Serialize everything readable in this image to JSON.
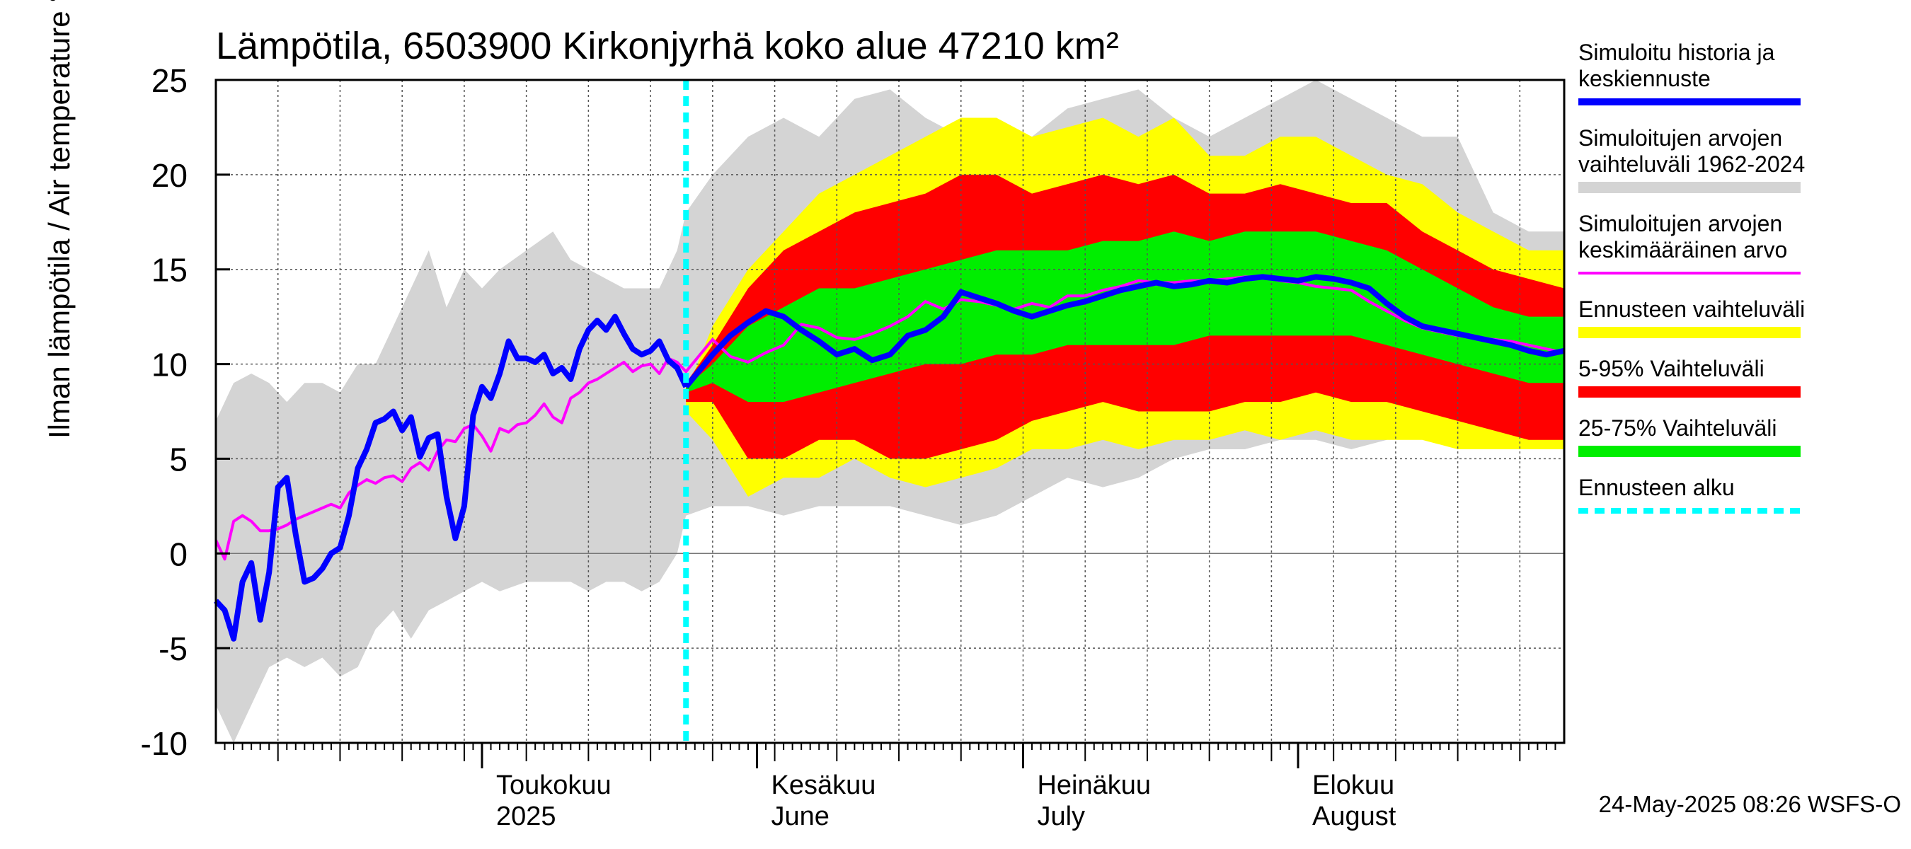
{
  "chart_data": {
    "type": "area",
    "title": "Lämpötila, 6503900 Kirkonjyrhä koko alue 47210 km²",
    "ylabel": "Ilman lämpötila / Air temperature   °C",
    "ylim": [
      -10,
      25
    ],
    "yticks": [
      -10,
      -5,
      0,
      5,
      10,
      15,
      20,
      25
    ],
    "xlim": [
      "2025-04-01",
      "2025-08-31"
    ],
    "grid": true,
    "legend_position": "right",
    "x_labels": [
      {
        "date": "2025-05-01",
        "line1": "Toukokuu",
        "line2": "2025"
      },
      {
        "date": "2025-06-01",
        "line1": "Kesäkuu",
        "line2": "June"
      },
      {
        "date": "2025-07-01",
        "line1": "Heinäkuu",
        "line2": "July"
      },
      {
        "date": "2025-08-01",
        "line1": "Elokuu",
        "line2": "August"
      }
    ],
    "forecast_start": "2025-05-24",
    "footer": "24-May-2025 08:26 WSFS-O",
    "colors": {
      "history": "#0000ff",
      "mean": "#ff00ff",
      "range_hist": "#d4d4d4",
      "range_forecast": "#ffff00",
      "p5_95": "#ff0000",
      "p25_75": "#00ee00",
      "forecast_start": "#00ffff"
    },
    "legend": [
      {
        "key": "history",
        "lines": [
          "Simuloitu historia ja",
          "keskiennuste"
        ],
        "style": "line"
      },
      {
        "key": "range_hist",
        "lines": [
          "Simuloitujen arvojen",
          "vaihteluväli 1962-2024"
        ],
        "style": "band"
      },
      {
        "key": "mean",
        "lines": [
          "Simuloitujen arvojen",
          "keskimääräinen arvo"
        ],
        "style": "thin"
      },
      {
        "key": "range_forecast",
        "lines": [
          "Ennusteen vaihteluväli"
        ],
        "style": "band"
      },
      {
        "key": "p5_95",
        "lines": [
          "5-95% Vaihteluväli"
        ],
        "style": "band"
      },
      {
        "key": "p25_75",
        "lines": [
          "25-75% Vaihteluväli"
        ],
        "style": "band"
      },
      {
        "key": "forecast_start",
        "lines": [
          "Ennusteen alku"
        ],
        "style": "dashed"
      }
    ],
    "series": {
      "hist_range": {
        "day": [
          0,
          2,
          4,
          6,
          8,
          10,
          12,
          14,
          16,
          18,
          20,
          22,
          24,
          26,
          28,
          30,
          32,
          35,
          38,
          40,
          42,
          44,
          46,
          48,
          50,
          52,
          53,
          56,
          60,
          64,
          68,
          72,
          76,
          80,
          84,
          88,
          92,
          96,
          100,
          104,
          108,
          112,
          116,
          120,
          124,
          128,
          132,
          136,
          140,
          144,
          148,
          152
        ],
        "low": [
          -8,
          -10,
          -8,
          -6,
          -5.5,
          -6,
          -5.5,
          -6.5,
          -6,
          -4,
          -3,
          -4.5,
          -3,
          -2.5,
          -2,
          -1.5,
          -2,
          -1.5,
          -1.5,
          -1.5,
          -2,
          -1.5,
          -1.5,
          -2,
          -1.5,
          0,
          2,
          2.5,
          2.5,
          2,
          2.5,
          2.5,
          2.5,
          2,
          1.5,
          2,
          3,
          4,
          3.5,
          4,
          5,
          5.5,
          5.5,
          6,
          6,
          5.5,
          6,
          6.5,
          6,
          5.5,
          5.5,
          5.5
        ],
        "high": [
          7,
          9,
          9.5,
          9,
          8,
          9,
          9,
          8.5,
          10,
          10,
          12,
          14,
          16,
          13,
          15,
          14,
          15,
          16,
          17,
          15.5,
          15,
          14.5,
          14,
          14,
          14,
          16,
          18,
          20,
          22,
          23,
          22,
          24,
          24.5,
          23,
          22,
          21,
          22,
          23.5,
          24,
          24.5,
          23,
          22,
          23,
          24,
          25,
          24,
          23,
          22,
          22,
          18,
          17,
          17
        ]
      },
      "forecast_range": {
        "day": [
          53,
          56,
          60,
          64,
          68,
          72,
          76,
          80,
          84,
          88,
          92,
          96,
          100,
          104,
          108,
          112,
          116,
          120,
          124,
          128,
          132,
          136,
          140,
          144,
          148,
          152
        ],
        "low": [
          7.5,
          6,
          3,
          4,
          4,
          5,
          4,
          3.5,
          4,
          4.5,
          5.5,
          5.5,
          6,
          5.5,
          6,
          6,
          6.5,
          6,
          6.5,
          6,
          6,
          6,
          5.5,
          5.5,
          5.5,
          5.5
        ],
        "high": [
          8.5,
          12,
          15,
          17,
          19,
          20,
          21,
          22,
          23,
          23,
          22,
          22.5,
          23,
          22,
          23,
          21,
          21,
          22,
          22,
          21,
          20,
          19.5,
          18,
          17,
          16,
          16
        ]
      },
      "p5_95": {
        "day": [
          53,
          56,
          60,
          64,
          68,
          72,
          76,
          80,
          84,
          88,
          92,
          96,
          100,
          104,
          108,
          112,
          116,
          120,
          124,
          128,
          132,
          136,
          140,
          144,
          148,
          152
        ],
        "low": [
          8,
          8,
          5,
          5,
          6,
          6,
          5,
          5,
          5.5,
          6,
          7,
          7.5,
          8,
          7.5,
          7.5,
          7.5,
          8,
          8,
          8.5,
          8,
          8,
          7.5,
          7,
          6.5,
          6,
          6
        ],
        "high": [
          9,
          11,
          14,
          16,
          17,
          18,
          18.5,
          19,
          20,
          20,
          19,
          19.5,
          20,
          19.5,
          20,
          19,
          19,
          19.5,
          19,
          18.5,
          18.5,
          17,
          16,
          15,
          14.5,
          14
        ]
      },
      "p25_75": {
        "day": [
          53,
          56,
          60,
          64,
          68,
          72,
          76,
          80,
          84,
          88,
          92,
          96,
          100,
          104,
          108,
          112,
          116,
          120,
          124,
          128,
          132,
          136,
          140,
          144,
          148,
          152
        ],
        "low": [
          8.5,
          9,
          8,
          8,
          8.5,
          9,
          9.5,
          10,
          10,
          10.5,
          10.5,
          11,
          11,
          11,
          11,
          11.5,
          11.5,
          11.5,
          11.5,
          11.5,
          11,
          10.5,
          10,
          9.5,
          9,
          9
        ],
        "high": [
          8.8,
          10,
          12,
          13,
          14,
          14,
          14.5,
          15,
          15.5,
          16,
          16,
          16,
          16.5,
          16.5,
          17,
          16.5,
          17,
          17,
          17,
          16.5,
          16,
          15,
          14,
          13,
          12.5,
          12.5
        ]
      },
      "history": {
        "day": [
          0,
          1,
          2,
          3,
          4,
          5,
          6,
          7,
          8,
          9,
          10,
          11,
          12,
          13,
          14,
          15,
          16,
          17,
          18,
          19,
          20,
          21,
          22,
          23,
          24,
          25,
          26,
          27,
          28,
          29,
          30,
          31,
          32,
          33,
          34,
          35,
          36,
          37,
          38,
          39,
          40,
          41,
          42,
          43,
          44,
          45,
          46,
          47,
          48,
          49,
          50,
          51,
          52,
          53
        ],
        "value": [
          -2.5,
          -3,
          -4.5,
          -1.5,
          -0.5,
          -3.5,
          -1,
          3.5,
          4,
          1,
          -1.5,
          -1.3,
          -0.8,
          0,
          0.3,
          2,
          4.5,
          5.5,
          6.9,
          7.1,
          7.5,
          6.5,
          7.2,
          5.1,
          6.1,
          6.3,
          3,
          0.8,
          2.5,
          7.3,
          8.8,
          8.2,
          9.5,
          11.2,
          10.3,
          10.3,
          10.1,
          10.5,
          9.5,
          9.8,
          9.2,
          10.8,
          11.8,
          12.3,
          11.8,
          12.5,
          11.6,
          10.8,
          10.5,
          10.7,
          11.2,
          10.2,
          9.8,
          8.8
        ]
      },
      "median_forecast": {
        "day": [
          53,
          56,
          58,
          60,
          62,
          64,
          66,
          68,
          70,
          72,
          74,
          76,
          78,
          80,
          82,
          84,
          86,
          88,
          90,
          92,
          94,
          96,
          98,
          100,
          102,
          104,
          106,
          108,
          110,
          112,
          114,
          116,
          118,
          120,
          122,
          124,
          126,
          128,
          130,
          132,
          134,
          136,
          138,
          140,
          142,
          144,
          146,
          148,
          150,
          152
        ],
        "value": [
          8.8,
          10.5,
          11.5,
          12.2,
          12.8,
          12.5,
          11.8,
          11.2,
          10.5,
          10.8,
          10.2,
          10.5,
          11.5,
          11.8,
          12.5,
          13.8,
          13.5,
          13.2,
          12.8,
          12.5,
          12.8,
          13.1,
          13.3,
          13.6,
          13.9,
          14.1,
          14.3,
          14.1,
          14.2,
          14.4,
          14.3,
          14.5,
          14.6,
          14.5,
          14.4,
          14.6,
          14.5,
          14.3,
          14,
          13.2,
          12.5,
          12,
          11.8,
          11.6,
          11.4,
          11.2,
          11,
          10.7,
          10.5,
          10.7
        ]
      },
      "mean": {
        "day": [
          0,
          1,
          2,
          3,
          4,
          5,
          6,
          7,
          8,
          9,
          10,
          11,
          12,
          13,
          14,
          15,
          16,
          17,
          18,
          19,
          20,
          21,
          22,
          23,
          24,
          25,
          26,
          27,
          28,
          29,
          30,
          31,
          32,
          33,
          34,
          35,
          36,
          37,
          38,
          39,
          40,
          41,
          42,
          43,
          44,
          45,
          46,
          47,
          48,
          49,
          50,
          51,
          52,
          53,
          56,
          58,
          60,
          62,
          64,
          66,
          68,
          70,
          72,
          74,
          76,
          78,
          80,
          82,
          84,
          86,
          88,
          90,
          92,
          94,
          96,
          98,
          100,
          102,
          104,
          106,
          108,
          110,
          112,
          114,
          116,
          118,
          120,
          122,
          124,
          126,
          128,
          130,
          132,
          134,
          136,
          138,
          140,
          142,
          144,
          146,
          148,
          150,
          152
        ],
        "value": [
          0.7,
          -0.3,
          1.7,
          2,
          1.7,
          1.2,
          1.2,
          1.3,
          1.5,
          1.8,
          2,
          2.2,
          2.4,
          2.6,
          2.4,
          3.2,
          3.6,
          3.9,
          3.7,
          4,
          4.1,
          3.8,
          4.5,
          4.8,
          4.4,
          5.4,
          6,
          5.9,
          6.6,
          6.8,
          6.2,
          5.4,
          6.6,
          6.4,
          6.8,
          6.9,
          7.3,
          7.9,
          7.2,
          6.9,
          8.2,
          8.5,
          9,
          9.2,
          9.5,
          9.8,
          10.1,
          9.6,
          9.9,
          10,
          9.5,
          10.3,
          10.1,
          9.6,
          11.3,
          10.4,
          10.1,
          10.6,
          11,
          12.1,
          11.9,
          11.4,
          11.3,
          11.6,
          12,
          12.5,
          13.3,
          12.9,
          13.4,
          13.3,
          13.1,
          12.9,
          13.2,
          13,
          13.6,
          13.6,
          13.9,
          14.1,
          14.4,
          14.3,
          14.3,
          14.4,
          14.4,
          14.5,
          14.6,
          14.6,
          14.4,
          14.3,
          14.1,
          14,
          13.9,
          13.3,
          12.8,
          12.3,
          11.9,
          11.7,
          11.5,
          11.4,
          11.3,
          11.2,
          11,
          10.8,
          10.6
        ]
      }
    }
  }
}
